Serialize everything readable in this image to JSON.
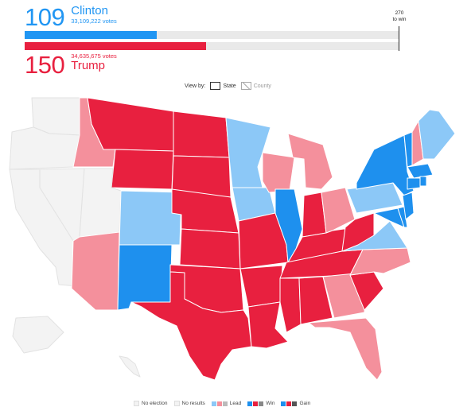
{
  "candidates": [
    {
      "name": "Clinton",
      "electoral_votes": "109",
      "votes_text": "33,109,222 votes",
      "ev_fraction": 0.353,
      "color": "#2196f3"
    },
    {
      "name": "Trump",
      "electoral_votes": "150",
      "votes_text": "34,635,675 votes",
      "ev_fraction": 0.486,
      "color": "#e8203f"
    }
  ],
  "threshold": {
    "line1": "270",
    "line2": "to win"
  },
  "view_by": {
    "label": "View by:",
    "options": [
      "State",
      "County"
    ],
    "selected": "State"
  },
  "legend": {
    "no_election": "No election",
    "no_results": "No results",
    "lead": "Lead",
    "win": "Win",
    "gain": "Gain"
  },
  "colors": {
    "dem_win": "#1e90ee",
    "dem_lead": "#8cc8f7",
    "rep_win": "#e8203f",
    "rep_lead": "#f4909c",
    "no_election": "#f3f3f3",
    "no_results": "#f3f3f3",
    "grey_lead": "#bbbbbb",
    "grey_win": "#888888",
    "grey_gain": "#555555"
  }
}
